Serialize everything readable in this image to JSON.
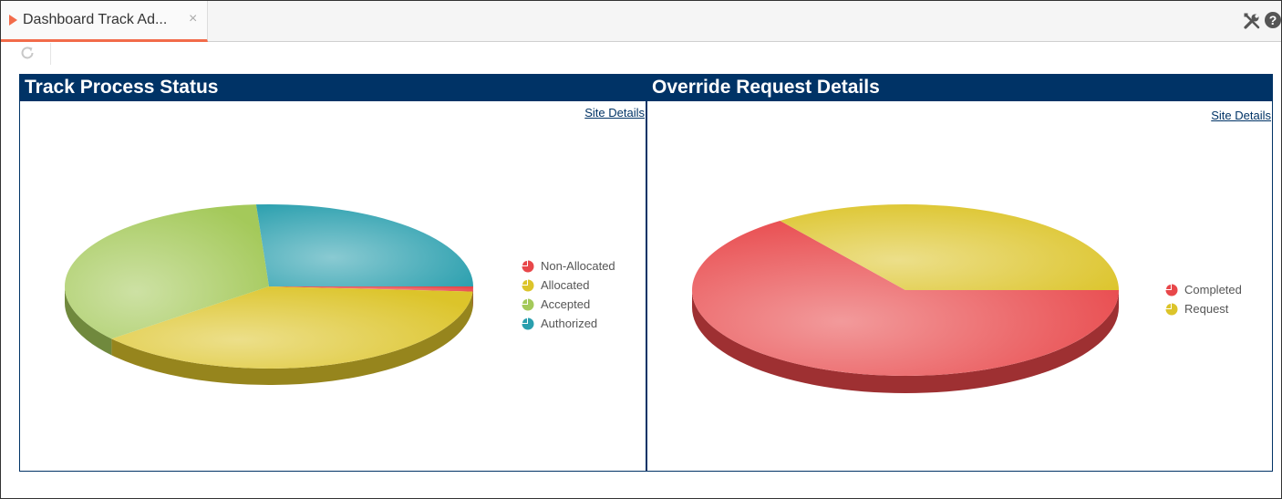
{
  "tab": {
    "title": "Dashboard Track Ad...",
    "close": "×"
  },
  "toolbar": {
    "help": "?"
  },
  "panels": [
    {
      "title": "Track Process Status",
      "link": "Site Details",
      "chart_data": {
        "type": "pie",
        "style": "3d",
        "categories": [
          "Non-Allocated",
          "Allocated",
          "Accepted",
          "Authorized"
        ],
        "values": [
          1,
          38,
          35,
          26
        ],
        "colors": [
          "#e8474a",
          "#dcc42a",
          "#a4c95a",
          "#2a9fae"
        ],
        "legend": "right"
      }
    },
    {
      "title": "Override Request Details",
      "link": "Site Details",
      "chart_data": {
        "type": "pie",
        "style": "3d",
        "categories": [
          "Completed",
          "Request"
        ],
        "values": [
          65,
          35
        ],
        "colors": [
          "#e8474a",
          "#dcc42a"
        ],
        "legend": "right"
      }
    }
  ]
}
